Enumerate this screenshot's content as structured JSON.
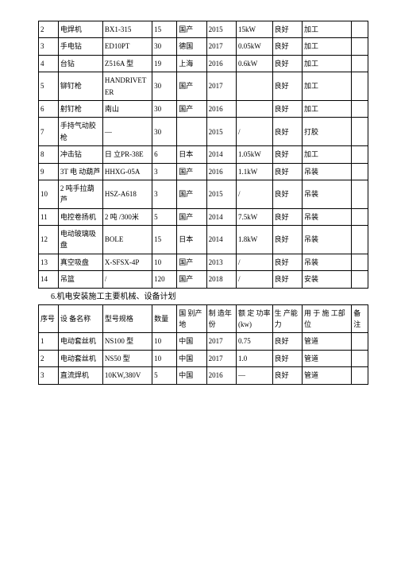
{
  "table1": {
    "rows": [
      [
        "2",
        "电焊机",
        "BX1-315",
        "15",
        "国产",
        "2015",
        "15kW",
        "良好",
        "加工",
        ""
      ],
      [
        "3",
        "手电钻",
        "ED10PT",
        "30",
        "德国",
        "2017",
        "0.05kW",
        "良好",
        "加工",
        ""
      ],
      [
        "4",
        "台钻",
        "Z516A 型",
        "19",
        "上海",
        "2016",
        "0.6kW",
        "良好",
        "加工",
        ""
      ],
      [
        "5",
        "铆钉枪",
        "HANDRIVETER",
        "30",
        "国产",
        "2017",
        "",
        "良好",
        "加工",
        ""
      ],
      [
        "6",
        "射钉枪",
        "南山",
        "30",
        "国产",
        "2016",
        "",
        "良好",
        "加工",
        ""
      ],
      [
        "7",
        "手持气动胶枪",
        "—",
        "30",
        "",
        "2015",
        "/",
        "良好",
        "打胶",
        ""
      ],
      [
        "8",
        "冲击钻",
        "日   立PR-38E",
        "6",
        "日本",
        "2014",
        "1.05kW",
        "良好",
        "加工",
        ""
      ],
      [
        "9",
        "3T 电 动葫芦",
        "HHXG-05A",
        "3",
        "国产",
        "2016",
        "1.1kW",
        "良好",
        "吊装",
        ""
      ],
      [
        "10",
        "2 吨手拉葫芦",
        "HSZ-A618",
        "3",
        "国产",
        "2015",
        "/",
        "良好",
        "吊装",
        ""
      ],
      [
        "11",
        "电控卷扬机",
        "2 吨 /300米",
        "5",
        "国产",
        "2014",
        "7.5kW",
        "良好",
        "吊装",
        ""
      ],
      [
        "12",
        "电动玻璃吸盘",
        "BOLE",
        "15",
        "日本",
        "2014",
        "1.8kW",
        "良好",
        "吊装",
        ""
      ],
      [
        "13",
        "真空吸盘",
        "X-SFSX-4P",
        "10",
        "国产",
        "2013",
        "/",
        "良好",
        "吊装",
        ""
      ],
      [
        "14",
        "吊篮",
        "/",
        "120",
        "国产",
        "2018",
        "/",
        "良好",
        "安装",
        ""
      ]
    ]
  },
  "section_title": "6.机电安装施工主要机械、设备计划",
  "table2": {
    "header": [
      "序号",
      "设 备名称",
      "型号规格",
      "数量",
      "国 别产地",
      "制 造年份",
      "额 定 功率(kw)",
      "生 产能力",
      "用 于 施 工部位",
      "备注"
    ],
    "rows": [
      [
        "1",
        "电动套丝机",
        "NS100 型",
        "10",
        "中国",
        "2017",
        "0.75",
        "良好",
        "管道",
        ""
      ],
      [
        "2",
        "电动套丝机",
        "NS50 型",
        "10",
        "中国",
        "2017",
        "1.0",
        "良好",
        "管道",
        ""
      ],
      [
        "3",
        "直流焊机",
        "10KW,380V",
        "5",
        "中国",
        "2016",
        "—",
        "良好",
        "管道",
        ""
      ]
    ]
  }
}
